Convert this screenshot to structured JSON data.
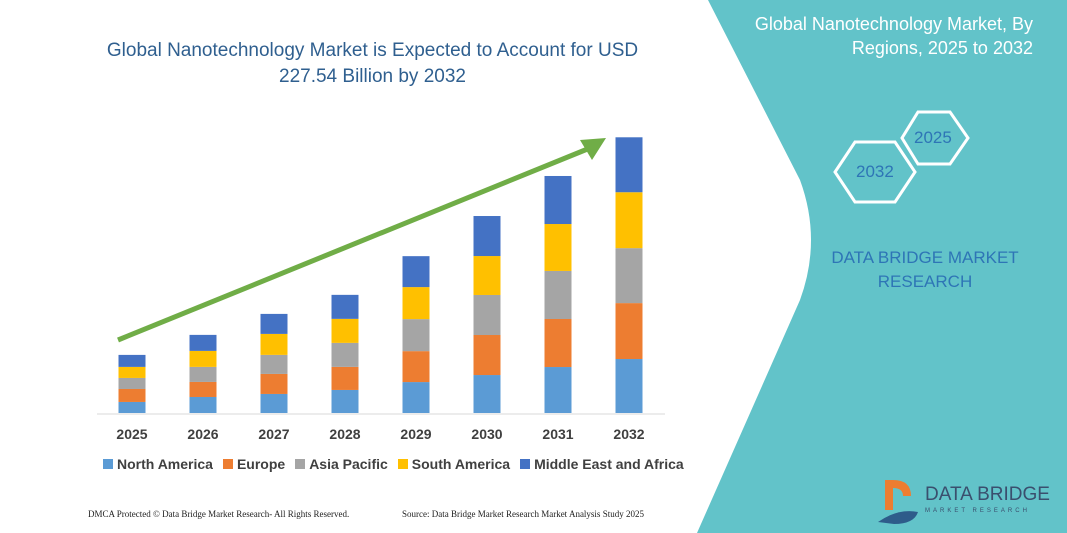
{
  "title": "Global Nanotechnology Market is Expected to Account for USD 227.54 Billion by 2032",
  "side_panel": {
    "title": "Global Nanotechnology Market, By Regions, 2025 to 2032",
    "hex_start": "2025",
    "hex_end": "2032",
    "brand": "DATA BRIDGE MARKET RESEARCH",
    "logo_text": "DATA BRIDGE",
    "logo_sub": "MARKET RESEARCH",
    "color": "#62c3c9"
  },
  "footer": {
    "left": "DMCA Protected © Data Bridge Market Research- All Rights Reserved.",
    "right": "Source: Data Bridge Market Research Market Analysis Study 2025"
  },
  "chart_data": {
    "type": "bar",
    "stacked": true,
    "title": "Global Nanotechnology Market is Expected to Account for USD 227.54 Billion by 2032",
    "categories": [
      "2025",
      "2026",
      "2027",
      "2028",
      "2029",
      "2030",
      "2031",
      "2032"
    ],
    "ylim": [
      0,
      230
    ],
    "grid": false,
    "legend_position": "bottom",
    "trend_arrow": true,
    "trend_color": "#70ad47",
    "series": [
      {
        "name": "North America",
        "color": "#5b9bd5",
        "values": [
          9.1,
          13.2,
          15.7,
          19.0,
          25.5,
          31.3,
          37.9,
          44.5
        ]
      },
      {
        "name": "Europe",
        "color": "#ed7d31",
        "values": [
          10.7,
          12.4,
          16.5,
          19.0,
          25.5,
          33.0,
          39.6,
          46.1
        ]
      },
      {
        "name": "Asia Pacific",
        "color": "#a5a5a5",
        "values": [
          9.1,
          12.4,
          15.7,
          19.8,
          26.4,
          33.0,
          39.6,
          45.3
        ]
      },
      {
        "name": "South America",
        "color": "#ffc000",
        "values": [
          9.1,
          13.2,
          17.3,
          19.8,
          26.4,
          32.1,
          38.7,
          46.1
        ]
      },
      {
        "name": "Middle East and Africa",
        "color": "#4472c4",
        "values": [
          9.9,
          13.2,
          16.5,
          19.8,
          25.5,
          33.0,
          39.6,
          45.3
        ]
      }
    ]
  }
}
